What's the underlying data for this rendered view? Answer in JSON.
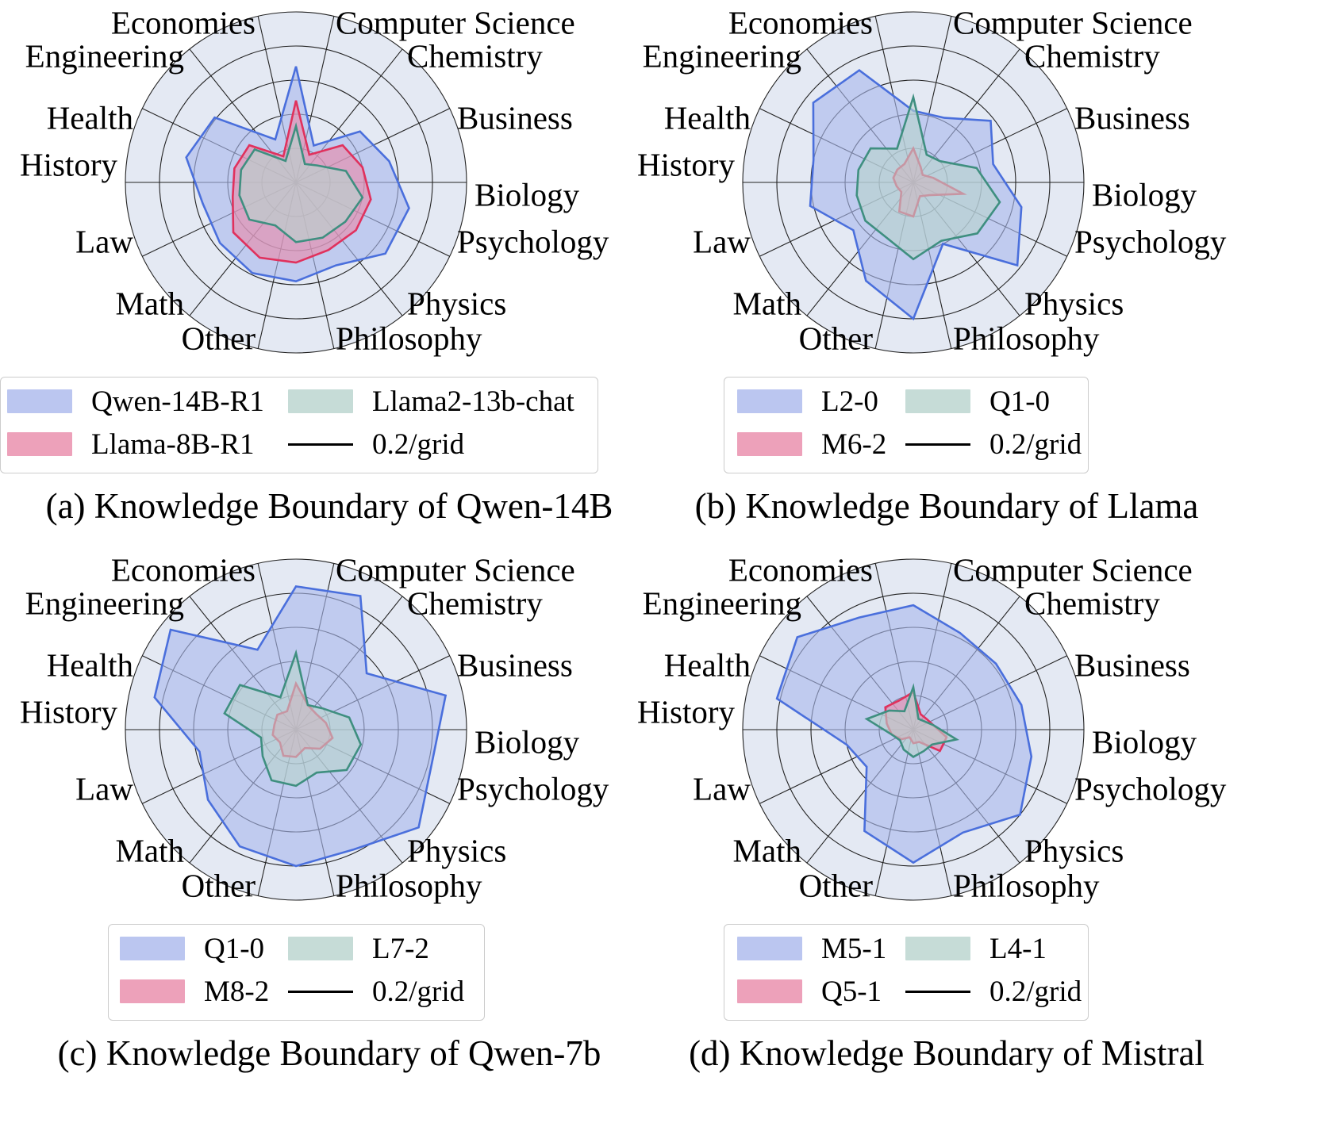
{
  "chart_data": [
    {
      "type": "radar",
      "caption": "(a) Knowledge Boundary of Qwen-14B",
      "axes": [
        "Economies",
        "Computer Science",
        "Chemistry",
        "Business",
        "Biology",
        "Psychology",
        "Physics",
        "Philosophy",
        "Other",
        "Math",
        "Law",
        "History",
        "Health",
        "Engineering"
      ],
      "grid_step": 0.2,
      "rmax": 1.0,
      "series": [
        {
          "name": "Qwen-14B-R1",
          "color": "#4a6fdc",
          "fill": "#aab8ec",
          "values": [
            0.68,
            0.24,
            0.48,
            0.56,
            0.68,
            0.67,
            0.54,
            0.58,
            0.59,
            0.57,
            0.56,
            0.66,
            0.61,
            0.28
          ]
        },
        {
          "name": "Llama-8B-R1",
          "color": "#e0315d",
          "fill": "#e98aa9",
          "values": [
            0.48,
            0.18,
            0.35,
            0.4,
            0.45,
            0.45,
            0.44,
            0.47,
            0.49,
            0.47,
            0.38,
            0.37,
            0.35,
            0.17
          ]
        },
        {
          "name": "Llama2-13b-chat",
          "color": "#3f8f80",
          "fill": "#b8d3cd",
          "values": [
            0.33,
            0.12,
            0.16,
            0.3,
            0.4,
            0.37,
            0.36,
            0.35,
            0.28,
            0.35,
            0.34,
            0.33,
            0.31,
            0.14
          ]
        }
      ],
      "legend_extra": "0.2/grid"
    },
    {
      "type": "radar",
      "caption": "(b) Knowledge Boundary of Llama",
      "axes": [
        "Economies",
        "Computer Science",
        "Chemistry",
        "Business",
        "Biology",
        "Psychology",
        "Physics",
        "Philosophy",
        "Other",
        "Math",
        "Law",
        "History",
        "Health",
        "Engineering"
      ],
      "grid_step": 0.2,
      "rmax": 1.0,
      "series": [
        {
          "name": "L2-0",
          "color": "#4a6fdc",
          "fill": "#aab8ec",
          "values": [
            0.42,
            0.42,
            0.58,
            0.48,
            0.65,
            0.78,
            0.4,
            0.8,
            0.64,
            0.45,
            0.62,
            0.6,
            0.75,
            0.73
          ]
        },
        {
          "name": "M6-2",
          "color": "#e0315d",
          "fill": "#e98aa9",
          "values": [
            0.2,
            0.1,
            0.07,
            0.12,
            0.3,
            0.12,
            0.09,
            0.2,
            0.19,
            0.09,
            0.1,
            0.12,
            0.12,
            0.12
          ]
        },
        {
          "name": "Q1-0",
          "color": "#3f8f80",
          "fill": "#b8d3cd",
          "values": [
            0.5,
            0.18,
            0.2,
            0.38,
            0.52,
            0.48,
            0.38,
            0.45,
            0.36,
            0.36,
            0.34,
            0.33,
            0.32,
            0.22
          ]
        }
      ],
      "legend_extra": "0.2/grid"
    },
    {
      "type": "radar",
      "caption": "(c) Knowledge Boundary of Qwen-7b",
      "axes": [
        "Economies",
        "Computer Science",
        "Chemistry",
        "Business",
        "Biology",
        "Psychology",
        "Physics",
        "Philosophy",
        "Other",
        "Math",
        "Law",
        "History",
        "Health",
        "Engineering"
      ],
      "grid_step": 0.2,
      "rmax": 1.0,
      "series": [
        {
          "name": "Q1-0",
          "color": "#4a6fdc",
          "fill": "#aab8ec",
          "values": [
            0.84,
            0.87,
            0.53,
            0.9,
            0.82,
            0.92,
            0.78,
            0.8,
            0.76,
            0.66,
            0.58,
            0.85,
            0.94,
            0.52
          ]
        },
        {
          "name": "M8-2",
          "color": "#e0315d",
          "fill": "#e98aa9",
          "values": [
            0.27,
            0.16,
            0.15,
            0.18,
            0.22,
            0.18,
            0.12,
            0.16,
            0.17,
            0.12,
            0.14,
            0.13,
            0.14,
            0.12
          ]
        },
        {
          "name": "L7-2",
          "color": "#3f8f80",
          "fill": "#b8d3cd",
          "values": [
            0.45,
            0.16,
            0.2,
            0.32,
            0.39,
            0.38,
            0.28,
            0.33,
            0.33,
            0.25,
            0.21,
            0.43,
            0.42,
            0.21
          ]
        }
      ],
      "legend_extra": "0.2/grid"
    },
    {
      "type": "radar",
      "caption": "(d) Knowledge Boundary of Mistral",
      "axes": [
        "Economies",
        "Computer Science",
        "Chemistry",
        "Business",
        "Biology",
        "Psychology",
        "Physics",
        "Philosophy",
        "Other",
        "Math",
        "Law",
        "History",
        "Health",
        "Engineering"
      ],
      "grid_step": 0.2,
      "rmax": 1.0,
      "series": [
        {
          "name": "M5-1",
          "color": "#4a6fdc",
          "fill": "#aab8ec",
          "values": [
            0.73,
            0.63,
            0.62,
            0.65,
            0.71,
            0.8,
            0.67,
            0.78,
            0.66,
            0.35,
            0.4,
            0.82,
            0.87,
            0.73
          ]
        },
        {
          "name": "Q5-1",
          "color": "#e0315d",
          "fill": "#e98aa9",
          "values": [
            0.22,
            0.1,
            0.1,
            0.12,
            0.2,
            0.2,
            0.08,
            0.08,
            0.05,
            0.09,
            0.13,
            0.16,
            0.21,
            0.19
          ]
        },
        {
          "name": "L4-1",
          "color": "#3f8f80",
          "fill": "#b8d3cd",
          "values": [
            0.25,
            0.07,
            0.08,
            0.12,
            0.26,
            0.14,
            0.14,
            0.16,
            0.13,
            0.1,
            0.13,
            0.28,
            0.18,
            0.12
          ]
        }
      ],
      "legend_extra": "0.2/grid"
    }
  ]
}
